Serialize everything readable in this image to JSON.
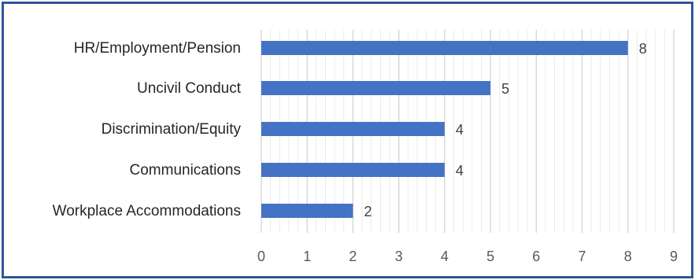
{
  "chart_data": {
    "type": "bar",
    "orientation": "horizontal",
    "categories": [
      "HR/Employment/Pension",
      "Uncivil Conduct",
      "Discrimination/Equity",
      "Communications",
      "Workplace Accommodations"
    ],
    "values": [
      8,
      5,
      4,
      4,
      2
    ],
    "xlim": [
      0,
      9
    ],
    "x_ticks": [
      "0",
      "1",
      "2",
      "3",
      "4",
      "5",
      "6",
      "7",
      "8",
      "9"
    ],
    "grid": "vertical minor lines",
    "title": "",
    "xlabel": "",
    "ylabel": "",
    "bar_color": "#4472c4",
    "frame_color": "#2f5597"
  }
}
